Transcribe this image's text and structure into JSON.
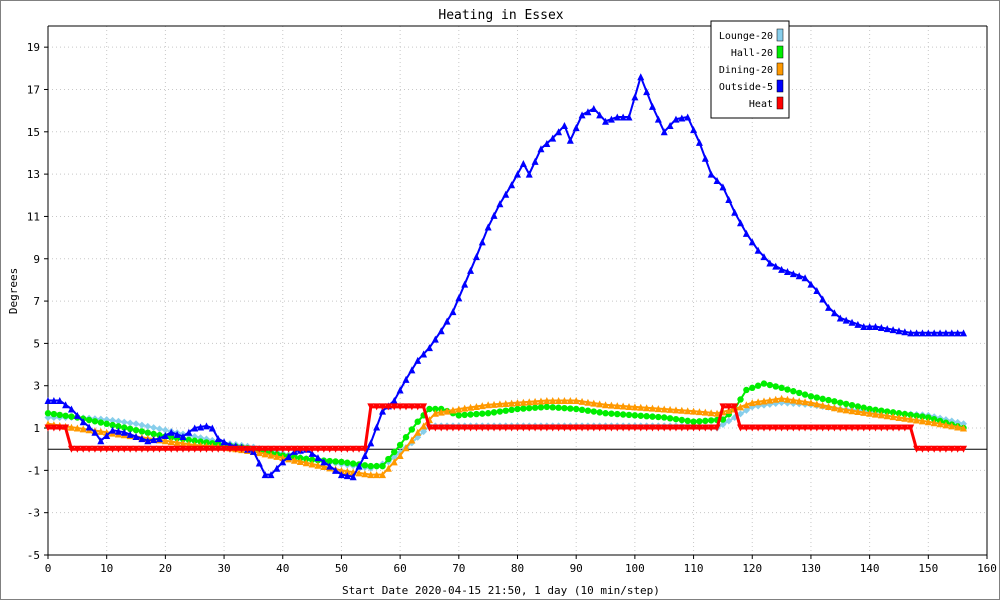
{
  "chart_data": {
    "type": "line",
    "title": "Heating in Essex",
    "xlabel": "Start Date 2020-04-15 21:50, 1 day (10 min/step)",
    "ylabel": "Degrees",
    "xlim": [
      0,
      160
    ],
    "ylim": [
      -5,
      20
    ],
    "xticks": [
      0,
      10,
      20,
      30,
      40,
      50,
      60,
      70,
      80,
      90,
      100,
      110,
      120,
      130,
      140,
      150,
      160
    ],
    "yticks": [
      -5,
      -3,
      -1,
      1,
      3,
      5,
      7,
      9,
      11,
      13,
      15,
      17,
      19
    ],
    "grid": true,
    "legend_position": "top-right",
    "zero_line": true,
    "series": [
      {
        "name": "Lounge-20",
        "color": "#87ceeb",
        "marker": "diamond",
        "points": [
          [
            0,
            1.5
          ],
          [
            5,
            1.5
          ],
          [
            10,
            1.4
          ],
          [
            15,
            1.2
          ],
          [
            20,
            0.9
          ],
          [
            25,
            0.6
          ],
          [
            30,
            0.3
          ],
          [
            35,
            0.1
          ],
          [
            40,
            -0.2
          ],
          [
            45,
            -0.5
          ],
          [
            50,
            -0.7
          ],
          [
            55,
            -0.9
          ],
          [
            58,
            -0.6
          ],
          [
            62,
            0.3
          ],
          [
            65,
            1.1
          ],
          [
            70,
            1.1
          ],
          [
            75,
            1.1
          ],
          [
            80,
            1.1
          ],
          [
            85,
            1.1
          ],
          [
            90,
            1.1
          ],
          [
            95,
            1.1
          ],
          [
            100,
            1.1
          ],
          [
            105,
            1.1
          ],
          [
            110,
            1.1
          ],
          [
            114,
            1.0
          ],
          [
            117,
            1.5
          ],
          [
            120,
            2.0
          ],
          [
            125,
            2.2
          ],
          [
            130,
            2.1
          ],
          [
            135,
            1.9
          ],
          [
            140,
            1.8
          ],
          [
            145,
            1.7
          ],
          [
            150,
            1.6
          ],
          [
            156,
            1.2
          ]
        ]
      },
      {
        "name": "Hall-20",
        "color": "#00ee00",
        "marker": "circle",
        "points": [
          [
            0,
            1.7
          ],
          [
            5,
            1.5
          ],
          [
            10,
            1.2
          ],
          [
            15,
            0.9
          ],
          [
            20,
            0.6
          ],
          [
            25,
            0.4
          ],
          [
            30,
            0.2
          ],
          [
            35,
            0.0
          ],
          [
            40,
            -0.3
          ],
          [
            45,
            -0.5
          ],
          [
            50,
            -0.6
          ],
          [
            55,
            -0.8
          ],
          [
            57,
            -0.8
          ],
          [
            60,
            0.2
          ],
          [
            63,
            1.3
          ],
          [
            65,
            1.9
          ],
          [
            67,
            1.9
          ],
          [
            70,
            1.6
          ],
          [
            75,
            1.7
          ],
          [
            80,
            1.9
          ],
          [
            85,
            2.0
          ],
          [
            90,
            1.9
          ],
          [
            95,
            1.7
          ],
          [
            100,
            1.6
          ],
          [
            105,
            1.5
          ],
          [
            110,
            1.3
          ],
          [
            115,
            1.4
          ],
          [
            117,
            1.9
          ],
          [
            119,
            2.8
          ],
          [
            122,
            3.1
          ],
          [
            125,
            2.9
          ],
          [
            130,
            2.5
          ],
          [
            135,
            2.2
          ],
          [
            140,
            1.9
          ],
          [
            145,
            1.7
          ],
          [
            150,
            1.5
          ],
          [
            156,
            1.0
          ]
        ]
      },
      {
        "name": "Dining-20",
        "color": "#ff9900",
        "marker": "triangle",
        "points": [
          [
            0,
            1.2
          ],
          [
            5,
            1.0
          ],
          [
            10,
            0.8
          ],
          [
            15,
            0.6
          ],
          [
            20,
            0.4
          ],
          [
            25,
            0.2
          ],
          [
            30,
            0.1
          ],
          [
            35,
            -0.1
          ],
          [
            40,
            -0.4
          ],
          [
            45,
            -0.7
          ],
          [
            50,
            -1.0
          ],
          [
            55,
            -1.2
          ],
          [
            57,
            -1.2
          ],
          [
            60,
            -0.3
          ],
          [
            63,
            0.8
          ],
          [
            66,
            1.7
          ],
          [
            70,
            1.9
          ],
          [
            75,
            2.1
          ],
          [
            80,
            2.2
          ],
          [
            85,
            2.3
          ],
          [
            90,
            2.3
          ],
          [
            95,
            2.1
          ],
          [
            100,
            2.0
          ],
          [
            105,
            1.9
          ],
          [
            110,
            1.8
          ],
          [
            114,
            1.7
          ],
          [
            117,
            1.9
          ],
          [
            120,
            2.2
          ],
          [
            125,
            2.4
          ],
          [
            130,
            2.2
          ],
          [
            135,
            1.9
          ],
          [
            140,
            1.7
          ],
          [
            145,
            1.5
          ],
          [
            150,
            1.3
          ],
          [
            156,
            1.0
          ]
        ]
      },
      {
        "name": "Outside-5",
        "color": "#0000ff",
        "marker": "triangle",
        "points": [
          [
            0,
            2.3
          ],
          [
            2,
            2.3
          ],
          [
            4,
            1.9
          ],
          [
            6,
            1.3
          ],
          [
            8,
            0.8
          ],
          [
            9,
            0.4
          ],
          [
            11,
            0.9
          ],
          [
            13,
            0.8
          ],
          [
            15,
            0.6
          ],
          [
            17,
            0.4
          ],
          [
            19,
            0.5
          ],
          [
            21,
            0.8
          ],
          [
            23,
            0.6
          ],
          [
            25,
            1.0
          ],
          [
            27,
            1.1
          ],
          [
            28,
            1.0
          ],
          [
            29,
            0.5
          ],
          [
            31,
            0.2
          ],
          [
            33,
            0.1
          ],
          [
            35,
            -0.1
          ],
          [
            37,
            -1.2
          ],
          [
            38,
            -1.2
          ],
          [
            40,
            -0.6
          ],
          [
            42,
            -0.1
          ],
          [
            44,
            0.0
          ],
          [
            46,
            -0.4
          ],
          [
            48,
            -0.8
          ],
          [
            50,
            -1.2
          ],
          [
            52,
            -1.3
          ],
          [
            54,
            -0.3
          ],
          [
            55,
            0.3
          ],
          [
            57,
            1.8
          ],
          [
            59,
            2.3
          ],
          [
            61,
            3.3
          ],
          [
            63,
            4.2
          ],
          [
            65,
            4.8
          ],
          [
            67,
            5.6
          ],
          [
            69,
            6.5
          ],
          [
            71,
            7.8
          ],
          [
            73,
            9.1
          ],
          [
            75,
            10.5
          ],
          [
            77,
            11.6
          ],
          [
            79,
            12.5
          ],
          [
            81,
            13.5
          ],
          [
            82,
            13.0
          ],
          [
            84,
            14.2
          ],
          [
            86,
            14.7
          ],
          [
            88,
            15.3
          ],
          [
            89,
            14.6
          ],
          [
            91,
            15.8
          ],
          [
            93,
            16.1
          ],
          [
            95,
            15.5
          ],
          [
            97,
            15.7
          ],
          [
            99,
            15.7
          ],
          [
            101,
            17.6
          ],
          [
            103,
            16.2
          ],
          [
            105,
            15.0
          ],
          [
            107,
            15.6
          ],
          [
            109,
            15.7
          ],
          [
            111,
            14.5
          ],
          [
            113,
            13.0
          ],
          [
            115,
            12.4
          ],
          [
            117,
            11.2
          ],
          [
            119,
            10.2
          ],
          [
            121,
            9.4
          ],
          [
            123,
            8.8
          ],
          [
            125,
            8.5
          ],
          [
            127,
            8.3
          ],
          [
            129,
            8.1
          ],
          [
            131,
            7.5
          ],
          [
            133,
            6.7
          ],
          [
            135,
            6.2
          ],
          [
            137,
            6.0
          ],
          [
            139,
            5.8
          ],
          [
            141,
            5.8
          ],
          [
            143,
            5.7
          ],
          [
            145,
            5.6
          ],
          [
            147,
            5.5
          ],
          [
            150,
            5.5
          ],
          [
            153,
            5.5
          ],
          [
            156,
            5.5
          ]
        ]
      },
      {
        "name": "Heat",
        "color": "#ff0000",
        "marker": "triangle-down",
        "points": [
          [
            0,
            1.0
          ],
          [
            3,
            1.0
          ],
          [
            4,
            0.0
          ],
          [
            54,
            0.0
          ],
          [
            55,
            2.0
          ],
          [
            64,
            2.0
          ],
          [
            65,
            1.0
          ],
          [
            114,
            1.0
          ],
          [
            115,
            2.0
          ],
          [
            117,
            2.0
          ],
          [
            118,
            1.0
          ],
          [
            147,
            1.0
          ],
          [
            148,
            0.0
          ],
          [
            156,
            0.0
          ]
        ]
      }
    ]
  }
}
